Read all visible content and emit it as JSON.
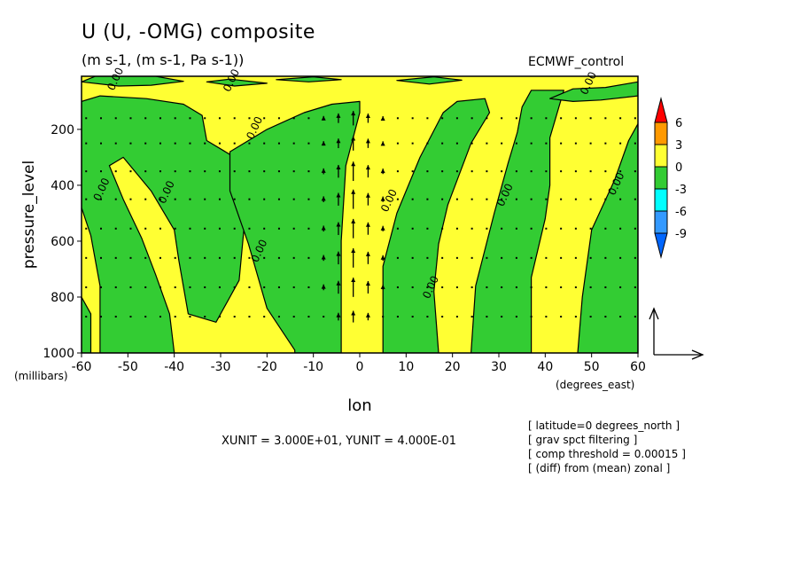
{
  "title": "U (U, -OMG) composite",
  "subtitle": "(m s-1, (m s-1, Pa s-1))",
  "dataset": "ECMWF_control",
  "xunit_label": "XUNIT = 3.000E+01, YUNIT = 4.000E-01",
  "info_lines": [
    "[ latitude=0 degrees_north ]",
    "[ grav spct filtering ]",
    "[ comp threshold = 0.00015 ]",
    "[ (diff) from (mean) zonal ]"
  ],
  "colors": {
    "pos_3_6": "#ff9900",
    "pos_0_3": "#ffff33",
    "neg_0_3": "#33cc33",
    "neg_3_6": "#00ffff",
    "neg_6_9": "#3399ff",
    "over": "#ff0000",
    "under": "#0066ff"
  },
  "chart_data": {
    "type": "contour-vector",
    "x": {
      "label": "lon",
      "unit_label": "(degrees_east)",
      "range": [
        -60,
        60
      ],
      "ticks": [
        -60,
        -50,
        -40,
        -30,
        -20,
        -10,
        0,
        10,
        20,
        30,
        40,
        50,
        60
      ],
      "tick_labels": [
        "-60",
        "-50",
        "-40",
        "-30",
        "-20",
        "-10",
        "0",
        "10",
        "20",
        "30",
        "40",
        "50",
        "60"
      ]
    },
    "y": {
      "label": "pressure_level",
      "unit_label": "(millibars)",
      "range": [
        1000,
        10
      ],
      "ticks": [
        1000,
        800,
        600,
        400,
        200
      ],
      "tick_labels": [
        "1000",
        "800",
        "600",
        "400",
        "200"
      ]
    },
    "colorbar": {
      "levels": [
        -9,
        -6,
        -3,
        0,
        3,
        6
      ],
      "labels": [
        "6",
        "3",
        "0",
        "-3",
        "-6",
        "-9"
      ]
    },
    "contour_label": "0.00",
    "contour_labels_at": [
      {
        "lon": -52,
        "p": 25
      },
      {
        "lon": -27,
        "p": 30
      },
      {
        "lon": -22,
        "p": 200
      },
      {
        "lon": -55,
        "p": 420
      },
      {
        "lon": -41,
        "p": 430
      },
      {
        "lon": -21,
        "p": 640
      },
      {
        "lon": 7,
        "p": 460
      },
      {
        "lon": 16,
        "p": 770
      },
      {
        "lon": 32,
        "p": 440
      },
      {
        "lon": 50,
        "p": 40
      },
      {
        "lon": 56,
        "p": 400
      }
    ],
    "negative_regions": [
      [
        [
          -60,
          910
        ],
        [
          -60,
          1000
        ],
        [
          -58,
          1000
        ],
        [
          -58,
          860
        ],
        [
          -60,
          800
        ]
      ],
      [
        [
          -60,
          100
        ],
        [
          -56,
          80
        ],
        [
          -46,
          90
        ],
        [
          -38,
          110
        ],
        [
          -34,
          150
        ],
        [
          -33,
          240
        ],
        [
          -28,
          290
        ],
        [
          -26,
          380
        ],
        [
          -25,
          470
        ],
        [
          -25,
          560
        ],
        [
          -26,
          740
        ],
        [
          -31,
          890
        ],
        [
          -37,
          860
        ],
        [
          -39,
          670
        ],
        [
          -40,
          560
        ],
        [
          -45,
          420
        ],
        [
          -51,
          300
        ],
        [
          -54,
          330
        ],
        [
          -51,
          450
        ],
        [
          -47,
          590
        ],
        [
          -44,
          720
        ],
        [
          -41,
          860
        ],
        [
          -40,
          1000
        ],
        [
          -56,
          1000
        ],
        [
          -56,
          760
        ],
        [
          -58,
          580
        ],
        [
          -60,
          480
        ]
      ],
      [
        [
          -14,
          990
        ],
        [
          -20,
          840
        ],
        [
          -24,
          610
        ],
        [
          -28,
          420
        ],
        [
          -28,
          280
        ],
        [
          -20,
          200
        ],
        [
          -12,
          140
        ],
        [
          -6,
          110
        ],
        [
          0,
          100
        ],
        [
          0,
          140
        ],
        [
          -3,
          330
        ],
        [
          -4,
          600
        ],
        [
          -4,
          1000
        ],
        [
          -14,
          1000
        ]
      ],
      [
        [
          5,
          1000
        ],
        [
          5,
          690
        ],
        [
          8,
          500
        ],
        [
          13,
          300
        ],
        [
          18,
          140
        ],
        [
          21,
          100
        ],
        [
          27,
          90
        ],
        [
          28,
          140
        ],
        [
          24,
          250
        ],
        [
          19,
          470
        ],
        [
          17,
          610
        ],
        [
          16,
          780
        ],
        [
          17,
          1000
        ]
      ],
      [
        [
          24,
          1000
        ],
        [
          25,
          760
        ],
        [
          29,
          500
        ],
        [
          32,
          320
        ],
        [
          34,
          210
        ],
        [
          35,
          120
        ],
        [
          37,
          60
        ],
        [
          44,
          60
        ],
        [
          41,
          230
        ],
        [
          41,
          400
        ],
        [
          40,
          520
        ],
        [
          37,
          730
        ],
        [
          37,
          1000
        ]
      ],
      [
        [
          47,
          1000
        ],
        [
          48,
          800
        ],
        [
          50,
          560
        ],
        [
          55,
          380
        ],
        [
          58,
          240
        ],
        [
          60,
          180
        ],
        [
          60,
          1000
        ]
      ],
      [
        [
          41,
          90
        ],
        [
          46,
          55
        ],
        [
          53,
          50
        ],
        [
          60,
          30
        ],
        [
          60,
          80
        ],
        [
          52,
          95
        ],
        [
          46,
          100
        ]
      ],
      [
        [
          -60,
          30
        ],
        [
          -57,
          10
        ],
        [
          -44,
          10
        ],
        [
          -38,
          28
        ],
        [
          -45,
          42
        ],
        [
          -52,
          45
        ]
      ],
      [
        [
          -33,
          30
        ],
        [
          -28,
          20
        ],
        [
          -20,
          35
        ],
        [
          -27,
          45
        ]
      ],
      [
        [
          -18,
          22
        ],
        [
          -10,
          12
        ],
        [
          -4,
          22
        ],
        [
          -11,
          30
        ]
      ],
      [
        [
          8,
          25
        ],
        [
          16,
          12
        ],
        [
          22,
          24
        ],
        [
          15,
          38
        ]
      ]
    ],
    "vector_reference": {
      "u": 30.0,
      "w": 0.4
    }
  }
}
